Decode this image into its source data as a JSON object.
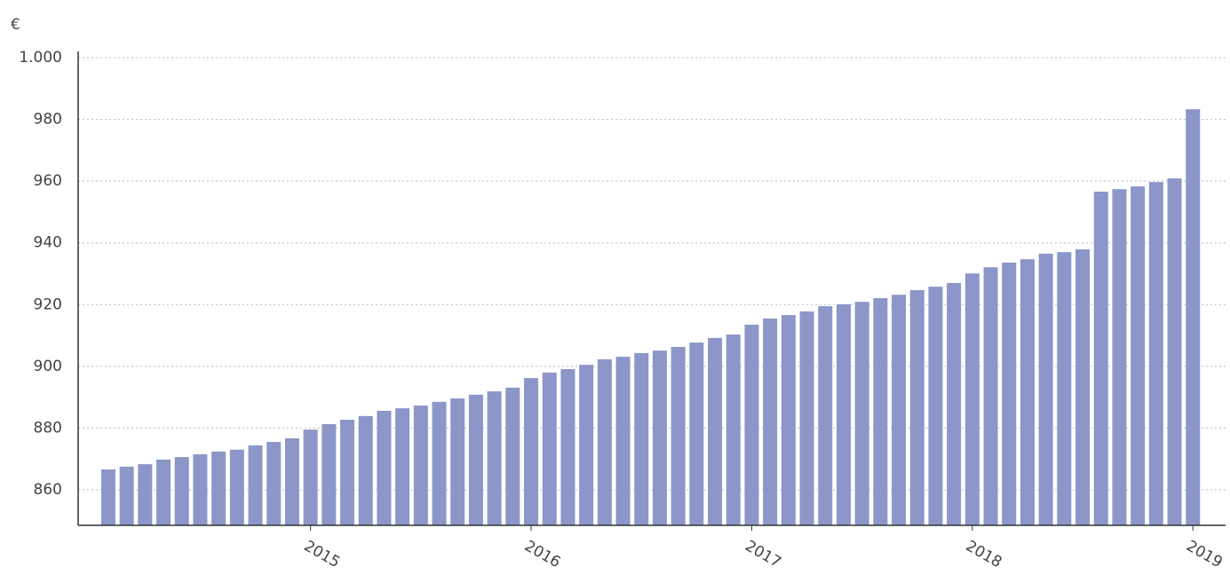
{
  "chart_data": {
    "type": "bar",
    "y_unit_label": "€",
    "categories": [
      null,
      null,
      null,
      null,
      null,
      null,
      null,
      null,
      null,
      null,
      null,
      "2015",
      null,
      null,
      null,
      null,
      null,
      null,
      null,
      null,
      null,
      null,
      null,
      "2016",
      null,
      null,
      null,
      null,
      null,
      null,
      null,
      null,
      null,
      null,
      null,
      "2017",
      null,
      null,
      null,
      null,
      null,
      null,
      null,
      null,
      null,
      null,
      null,
      "2018",
      null,
      null,
      null,
      null,
      null,
      null,
      null,
      null,
      null,
      null,
      null,
      "2019"
    ],
    "values": [
      866.6,
      867.5,
      868.3,
      869.8,
      870.6,
      871.5,
      872.4,
      873,
      874.4,
      875.5,
      876.7,
      879.5,
      881.3,
      882.7,
      883.9,
      885.6,
      886.4,
      887.3,
      888.5,
      889.6,
      890.8,
      891.9,
      893.1,
      896.2,
      898,
      899.1,
      900.5,
      902.3,
      903.1,
      904.3,
      905.1,
      906.3,
      907.7,
      909.2,
      910.3,
      913.5,
      915.5,
      916.6,
      917.8,
      919.5,
      920.1,
      920.9,
      922.1,
      923.2,
      924.7,
      925.8,
      927,
      930.1,
      932.1,
      933.6,
      934.7,
      936.5,
      937,
      937.9,
      956.6,
      957.4,
      958.3,
      959.7,
      960.9,
      983.3
    ],
    "color": "#8c96c8",
    "ylim": [
      848.5,
      1000
    ],
    "yticks": [
      860,
      880,
      900,
      920,
      940,
      960,
      980,
      {
        "value": 1000,
        "label": "1.000"
      }
    ],
    "grid": true
  }
}
